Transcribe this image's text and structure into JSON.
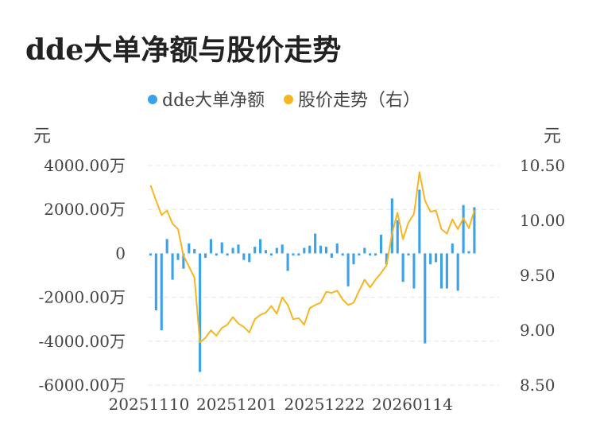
{
  "chart_data": {
    "type": "bar",
    "title": "dde大单净额与股价走势",
    "legend": [
      {
        "name": "dde大单净额",
        "color": "#3ba1e8"
      },
      {
        "name": "股价走势（右）",
        "color": "#f5b622"
      }
    ],
    "y_unit_left": "元",
    "y_unit_right": "元",
    "y_left": {
      "min": -6000,
      "max": 4000,
      "ticks": [
        4000,
        2000,
        0,
        -2000,
        -4000,
        -6000
      ],
      "tick_labels": [
        "4000.00万",
        "2000.00万",
        "0",
        "-2000.00万",
        "-4000.00万",
        "-6000.00万"
      ]
    },
    "y_right": {
      "min": 8.5,
      "max": 10.5,
      "ticks": [
        10.5,
        10.0,
        9.5,
        9.0,
        8.5
      ],
      "tick_labels": [
        "10.50",
        "10.00",
        "9.50",
        "9.00",
        "8.50"
      ]
    },
    "x_tick_labels": [
      {
        "index": 0,
        "label": "20251110"
      },
      {
        "index": 16,
        "label": "20251201"
      },
      {
        "index": 32,
        "label": "20251222"
      },
      {
        "index": 48,
        "label": "20260114"
      }
    ],
    "n_points": 64,
    "series": [
      {
        "name": "dde大单净额",
        "type": "bar",
        "axis": "left",
        "values": [
          -100,
          -2600,
          -3500,
          650,
          -1200,
          -300,
          -700,
          450,
          200,
          -5400,
          -200,
          650,
          -100,
          500,
          -100,
          250,
          400,
          -300,
          -400,
          300,
          650,
          150,
          -100,
          250,
          400,
          -800,
          -100,
          -100,
          250,
          350,
          900,
          350,
          300,
          -200,
          450,
          -100,
          -1500,
          -500,
          -100,
          250,
          -100,
          -100,
          850,
          -500,
          2500,
          1500,
          -1300,
          -100,
          -1600,
          2900,
          -4100,
          -500,
          -400,
          -1600,
          -1600,
          450,
          -1700,
          2200,
          100,
          2100,
          0,
          0,
          0,
          0
        ]
      },
      {
        "name": "股价走势（右）",
        "type": "line",
        "axis": "right",
        "values": [
          10.32,
          10.18,
          10.05,
          10.09,
          9.97,
          9.92,
          9.68,
          9.58,
          9.48,
          8.89,
          8.93,
          9.0,
          8.95,
          9.02,
          9.05,
          9.12,
          9.06,
          9.03,
          8.98,
          9.1,
          9.14,
          9.16,
          9.22,
          9.15,
          9.3,
          9.23,
          9.1,
          9.11,
          9.05,
          9.2,
          9.23,
          9.25,
          9.35,
          9.34,
          9.36,
          9.28,
          9.23,
          9.25,
          9.36,
          9.46,
          9.39,
          9.46,
          9.52,
          9.59,
          9.88,
          10.07,
          9.83,
          9.98,
          10.06,
          10.44,
          10.18,
          10.08,
          10.09,
          9.92,
          9.88,
          10.01,
          9.92,
          10.02,
          9.93,
          10.09,
          null,
          null,
          null,
          null
        ]
      }
    ]
  }
}
